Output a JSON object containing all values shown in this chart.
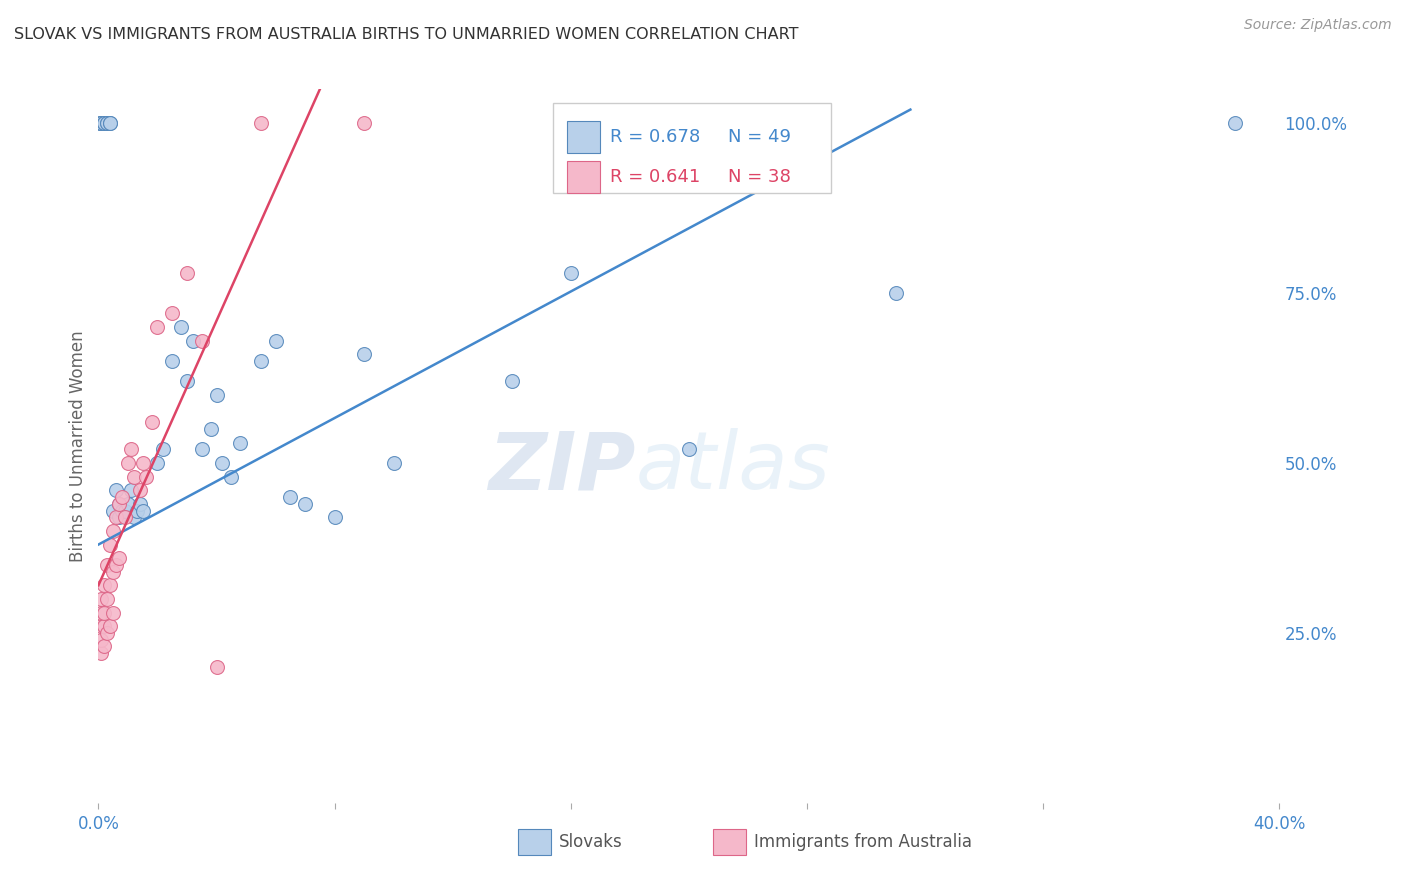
{
  "title": "SLOVAK VS IMMIGRANTS FROM AUSTRALIA BIRTHS TO UNMARRIED WOMEN CORRELATION CHART",
  "source": "Source: ZipAtlas.com",
  "ylabel": "Births to Unmarried Women",
  "right_ytick_labels": [
    "25.0%",
    "50.0%",
    "75.0%",
    "100.0%"
  ],
  "right_ytick_values": [
    0.25,
    0.5,
    0.75,
    1.0
  ],
  "xlim": [
    0.0,
    0.4
  ],
  "ylim": [
    0.0,
    1.05
  ],
  "xtick_labels": [
    "0.0%",
    "",
    "",
    "",
    "",
    "40.0%"
  ],
  "xtick_values": [
    0.0,
    0.08,
    0.16,
    0.24,
    0.32,
    0.4
  ],
  "blue_label": "Slovaks",
  "pink_label": "Immigrants from Australia",
  "blue_color": "#b8d0ea",
  "pink_color": "#f5b8ca",
  "blue_edge_color": "#5588bb",
  "pink_edge_color": "#dd6688",
  "trend_blue_color": "#4488cc",
  "trend_pink_color": "#dd4466",
  "legend_blue_R": "R = 0.678",
  "legend_blue_N": "N = 49",
  "legend_pink_R": "R = 0.641",
  "legend_pink_N": "N = 38",
  "watermark_zip": "ZIP",
  "watermark_atlas": "atlas",
  "watermark_color": "#d0dff0",
  "background_color": "#ffffff",
  "grid_color": "#dddddd",
  "axis_label_color": "#4488cc",
  "title_color": "#333333",
  "blue_trend_x": [
    0.0,
    0.275
  ],
  "blue_trend_y": [
    0.38,
    1.02
  ],
  "pink_trend_x": [
    0.0,
    0.075
  ],
  "pink_trend_y": [
    0.32,
    1.05
  ],
  "blue_scatter_x": [
    0.001,
    0.001,
    0.001,
    0.001,
    0.001,
    0.001,
    0.001,
    0.002,
    0.002,
    0.003,
    0.003,
    0.004,
    0.004,
    0.005,
    0.006,
    0.007,
    0.007,
    0.008,
    0.009,
    0.01,
    0.011,
    0.012,
    0.013,
    0.014,
    0.015,
    0.02,
    0.022,
    0.025,
    0.028,
    0.03,
    0.032,
    0.035,
    0.038,
    0.04,
    0.042,
    0.045,
    0.048,
    0.055,
    0.06,
    0.065,
    0.07,
    0.08,
    0.09,
    0.1,
    0.14,
    0.16,
    0.2,
    0.27,
    0.385
  ],
  "blue_scatter_y": [
    1.0,
    1.0,
    1.0,
    1.0,
    1.0,
    1.0,
    1.0,
    1.0,
    1.0,
    1.0,
    1.0,
    1.0,
    1.0,
    0.43,
    0.46,
    0.42,
    0.44,
    0.43,
    0.43,
    0.44,
    0.46,
    0.42,
    0.43,
    0.44,
    0.43,
    0.5,
    0.52,
    0.65,
    0.7,
    0.62,
    0.68,
    0.52,
    0.55,
    0.6,
    0.5,
    0.48,
    0.53,
    0.65,
    0.68,
    0.45,
    0.44,
    0.42,
    0.66,
    0.5,
    0.62,
    0.78,
    0.52,
    0.75,
    1.0
  ],
  "pink_scatter_x": [
    0.001,
    0.001,
    0.001,
    0.001,
    0.001,
    0.002,
    0.002,
    0.002,
    0.002,
    0.003,
    0.003,
    0.003,
    0.004,
    0.004,
    0.004,
    0.005,
    0.005,
    0.005,
    0.006,
    0.006,
    0.007,
    0.007,
    0.008,
    0.009,
    0.01,
    0.011,
    0.012,
    0.014,
    0.015,
    0.016,
    0.018,
    0.02,
    0.025,
    0.03,
    0.035,
    0.04,
    0.055,
    0.09
  ],
  "pink_scatter_y": [
    0.22,
    0.24,
    0.26,
    0.28,
    0.3,
    0.23,
    0.26,
    0.28,
    0.32,
    0.25,
    0.3,
    0.35,
    0.26,
    0.32,
    0.38,
    0.28,
    0.34,
    0.4,
    0.35,
    0.42,
    0.36,
    0.44,
    0.45,
    0.42,
    0.5,
    0.52,
    0.48,
    0.46,
    0.5,
    0.48,
    0.56,
    0.7,
    0.72,
    0.78,
    0.68,
    0.2,
    1.0,
    1.0
  ]
}
